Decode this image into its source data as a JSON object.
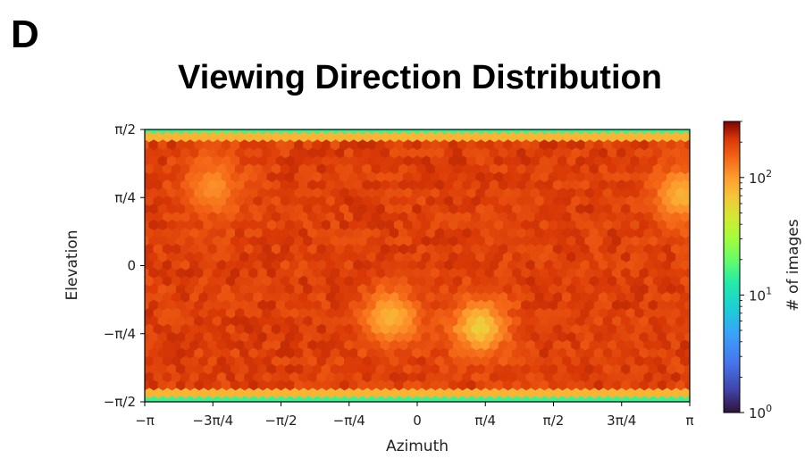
{
  "panel_label": "D",
  "chart_data": {
    "type": "heatmap",
    "title": "Viewing Direction Distribution",
    "xlabel": "Azimuth",
    "ylabel": "Elevation",
    "x_ticks": [
      "−π",
      "−3π/4",
      "−π/2",
      "−π/4",
      "0",
      "π/4",
      "π/2",
      "3π/4",
      "π"
    ],
    "y_ticks": [
      "π/2",
      "π/4",
      "0",
      "−π/4",
      "−π/2"
    ],
    "xlim": [
      "−π",
      "π"
    ],
    "ylim": [
      "−π/2",
      "π/2"
    ],
    "colorbar": {
      "label": "# of images",
      "scale": "log",
      "range": [
        1,
        300
      ],
      "ticks": [
        {
          "base": "10",
          "exp": "2",
          "value": 100
        },
        {
          "base": "10",
          "exp": "1",
          "value": 10
        },
        {
          "base": "10",
          "exp": "0",
          "value": 1
        }
      ],
      "colormap": "turbo"
    },
    "density_description": {
      "typical_count": 200,
      "edge_count": 15,
      "hotspots": [
        {
          "azimuth": -2.35,
          "elevation": 0.9,
          "count": 110
        },
        {
          "azimuth": 0.72,
          "elevation": -0.72,
          "count": 60
        },
        {
          "azimuth": -0.3,
          "elevation": -0.6,
          "count": 80
        },
        {
          "azimuth": 3.05,
          "elevation": 0.8,
          "count": 80
        }
      ]
    }
  }
}
